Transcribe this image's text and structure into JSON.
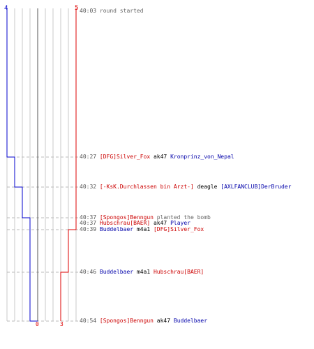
{
  "scoreboard": {
    "blue_start": "4",
    "red_start": "5",
    "blue_end": "0",
    "red_end": "3",
    "colors": {
      "blue": "#0000aa",
      "red": "#dd0000",
      "grid": "#c8c8c8",
      "dash": "#bbbbbb",
      "axis": "#000000"
    }
  },
  "events": [
    {
      "time": "40:03",
      "parts": [
        {
          "text": "round started",
          "color": "gray"
        }
      ]
    },
    {
      "time": "40:27",
      "parts": [
        {
          "text": "[DFG]Silver_Fox",
          "color": "red"
        },
        {
          "text": " ak47 ",
          "color": "blk"
        },
        {
          "text": "Kronprinz_von_Nepal",
          "color": "blue"
        }
      ]
    },
    {
      "time": "40:32",
      "parts": [
        {
          "text": "[-KsK.Durchlassen bin Arzt-]",
          "color": "red"
        },
        {
          "text": " deagle ",
          "color": "blk"
        },
        {
          "text": "[AXLFANCLUB]DerBruder",
          "color": "blue"
        }
      ]
    },
    {
      "time": "40:37",
      "parts": [
        {
          "text": "[Spongos]Benngun",
          "color": "red"
        },
        {
          "text": " planted the bomb",
          "color": "gray"
        }
      ]
    },
    {
      "time": "40:37",
      "parts": [
        {
          "text": "Hubschrau[BAER]",
          "color": "red"
        },
        {
          "text": " ak47 ",
          "color": "blk"
        },
        {
          "text": "Player",
          "color": "blue"
        }
      ]
    },
    {
      "time": "40:39",
      "parts": [
        {
          "text": "Buddelbaer",
          "color": "blue"
        },
        {
          "text": " m4a1 ",
          "color": "blk"
        },
        {
          "text": "[DFG]Silver_Fox",
          "color": "red"
        }
      ]
    },
    {
      "time": "40:46",
      "parts": [
        {
          "text": "Buddelbaer",
          "color": "blue"
        },
        {
          "text": " m4a1 ",
          "color": "blk"
        },
        {
          "text": "Hubschrau[BAER]",
          "color": "red"
        }
      ]
    },
    {
      "time": "40:54",
      "parts": [
        {
          "text": "[Spongos]Benngun",
          "color": "red"
        },
        {
          "text": " ak47 ",
          "color": "blk"
        },
        {
          "text": "Buddelbaer",
          "color": "blue"
        }
      ]
    }
  ]
}
